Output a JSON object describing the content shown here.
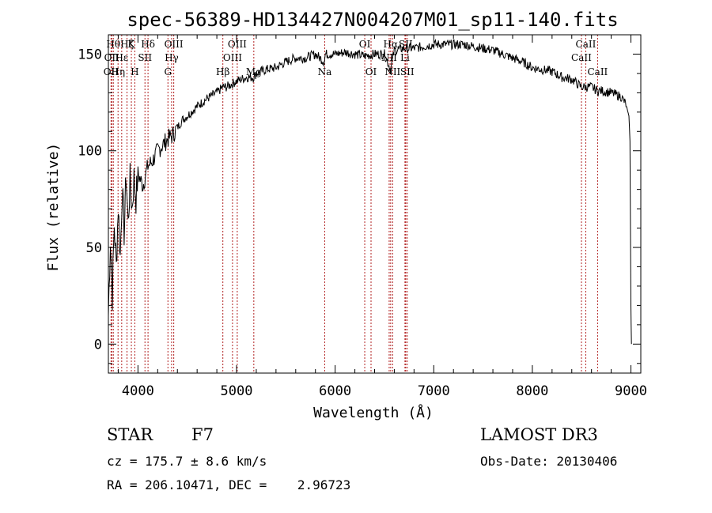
{
  "chart_data": {
    "type": "line",
    "title": "spec-56389-HD134427N004207M01_sp11-140.fits",
    "xlabel": "Wavelength (Å)",
    "ylabel": "Flux (relative)",
    "xlim": [
      3700,
      9100
    ],
    "ylim": [
      -15,
      160
    ],
    "x_ticks": [
      4000,
      5000,
      6000,
      7000,
      8000,
      9000
    ],
    "y_ticks": [
      0,
      50,
      100,
      150
    ],
    "grid": false,
    "series": [
      {
        "name": "flux",
        "x": [
          3700,
          3720,
          3740,
          3760,
          3780,
          3800,
          3820,
          3840,
          3860,
          3880,
          3900,
          3920,
          3940,
          3960,
          3980,
          4000,
          4050,
          4100,
          4150,
          4200,
          4250,
          4300,
          4350,
          4400,
          4450,
          4500,
          4600,
          4700,
          4800,
          4861,
          4900,
          5000,
          5100,
          5175,
          5200,
          5300,
          5400,
          5500,
          5600,
          5700,
          5800,
          5890,
          5900,
          6000,
          6100,
          6200,
          6300,
          6400,
          6500,
          6563,
          6600,
          6700,
          6800,
          6900,
          7000,
          7100,
          7200,
          7300,
          7400,
          7500,
          7600,
          7700,
          7800,
          7900,
          8000,
          8100,
          8200,
          8300,
          8400,
          8498,
          8542,
          8600,
          8662,
          8700,
          8800,
          8900,
          8950,
          8980,
          8990,
          9000,
          9005
        ],
        "y": [
          15,
          55,
          25,
          62,
          40,
          72,
          45,
          80,
          58,
          88,
          62,
          85,
          70,
          86,
          75,
          88,
          82,
          92,
          95,
          100,
          103,
          106,
          108,
          112,
          116,
          118,
          123,
          127,
          130,
          133,
          133,
          136,
          138,
          138,
          140,
          142,
          143,
          146,
          148,
          148,
          150,
          146,
          150,
          150,
          151,
          150,
          149,
          150,
          150,
          142,
          152,
          153,
          153,
          154,
          155,
          155,
          155,
          155,
          154,
          153,
          152,
          150,
          148,
          146,
          143,
          142,
          141,
          138,
          137,
          133,
          133,
          133,
          131,
          131,
          130,
          128,
          124,
          118,
          105,
          20,
          0
        ]
      }
    ],
    "spectral_lines": [
      {
        "wavelength": 3727,
        "label": "OII",
        "row": 2
      },
      {
        "wavelength": 3734,
        "label": "OII",
        "row": 1
      },
      {
        "wavelength": 3750,
        "label": "Hθ",
        "row": 0
      },
      {
        "wavelength": 3798,
        "label": "Hη",
        "row": 2
      },
      {
        "wavelength": 3835,
        "label": "Hε",
        "row": 1
      },
      {
        "wavelength": 3889,
        "label": "Hζ",
        "row": 0
      },
      {
        "wavelength": 3933,
        "label": "K",
        "row": 0
      },
      {
        "wavelength": 3968,
        "label": "H",
        "row": 2
      },
      {
        "wavelength": 4071,
        "label": "SII",
        "row": 1
      },
      {
        "wavelength": 4102,
        "label": "Hδ",
        "row": 0
      },
      {
        "wavelength": 4304,
        "label": "G",
        "row": 2
      },
      {
        "wavelength": 4341,
        "label": "Hγ",
        "row": 1
      },
      {
        "wavelength": 4363,
        "label": "OIII",
        "row": 0
      },
      {
        "wavelength": 4861,
        "label": "Hβ",
        "row": 2
      },
      {
        "wavelength": 4959,
        "label": "OIII",
        "row": 1
      },
      {
        "wavelength": 5007,
        "label": "OIII",
        "row": 0
      },
      {
        "wavelength": 5175,
        "label": "Mg",
        "row": 2
      },
      {
        "wavelength": 5894,
        "label": "Na",
        "row": 2
      },
      {
        "wavelength": 6300,
        "label": "OI",
        "row": 0
      },
      {
        "wavelength": 6364,
        "label": "OI",
        "row": 2
      },
      {
        "wavelength": 6548,
        "label": "NII",
        "row": 1
      },
      {
        "wavelength": 6563,
        "label": "Hα",
        "row": 0
      },
      {
        "wavelength": 6583,
        "label": "NII",
        "row": 2
      },
      {
        "wavelength": 6708,
        "label": "Li",
        "row": 1
      },
      {
        "wavelength": 6716,
        "label": "SII",
        "row": 0
      },
      {
        "wavelength": 6731,
        "label": "SII",
        "row": 2
      },
      {
        "wavelength": 8498,
        "label": "CaII",
        "row": 1
      },
      {
        "wavelength": 8542,
        "label": "CaII",
        "row": 0
      },
      {
        "wavelength": 8662,
        "label": "CaII",
        "row": 2
      }
    ]
  },
  "info": {
    "object_type": "STAR",
    "subclass": "F7",
    "survey": "LAMOST DR3",
    "cz_line": "cz = 175.7 ± 8.6 km/s",
    "obs_date_line": "Obs-Date: 20130406",
    "radec_line": "RA = 206.10471, DEC =    2.96723"
  },
  "colors": {
    "spectrum": "#000000",
    "line_marker": "#b22222",
    "axis": "#000000"
  }
}
